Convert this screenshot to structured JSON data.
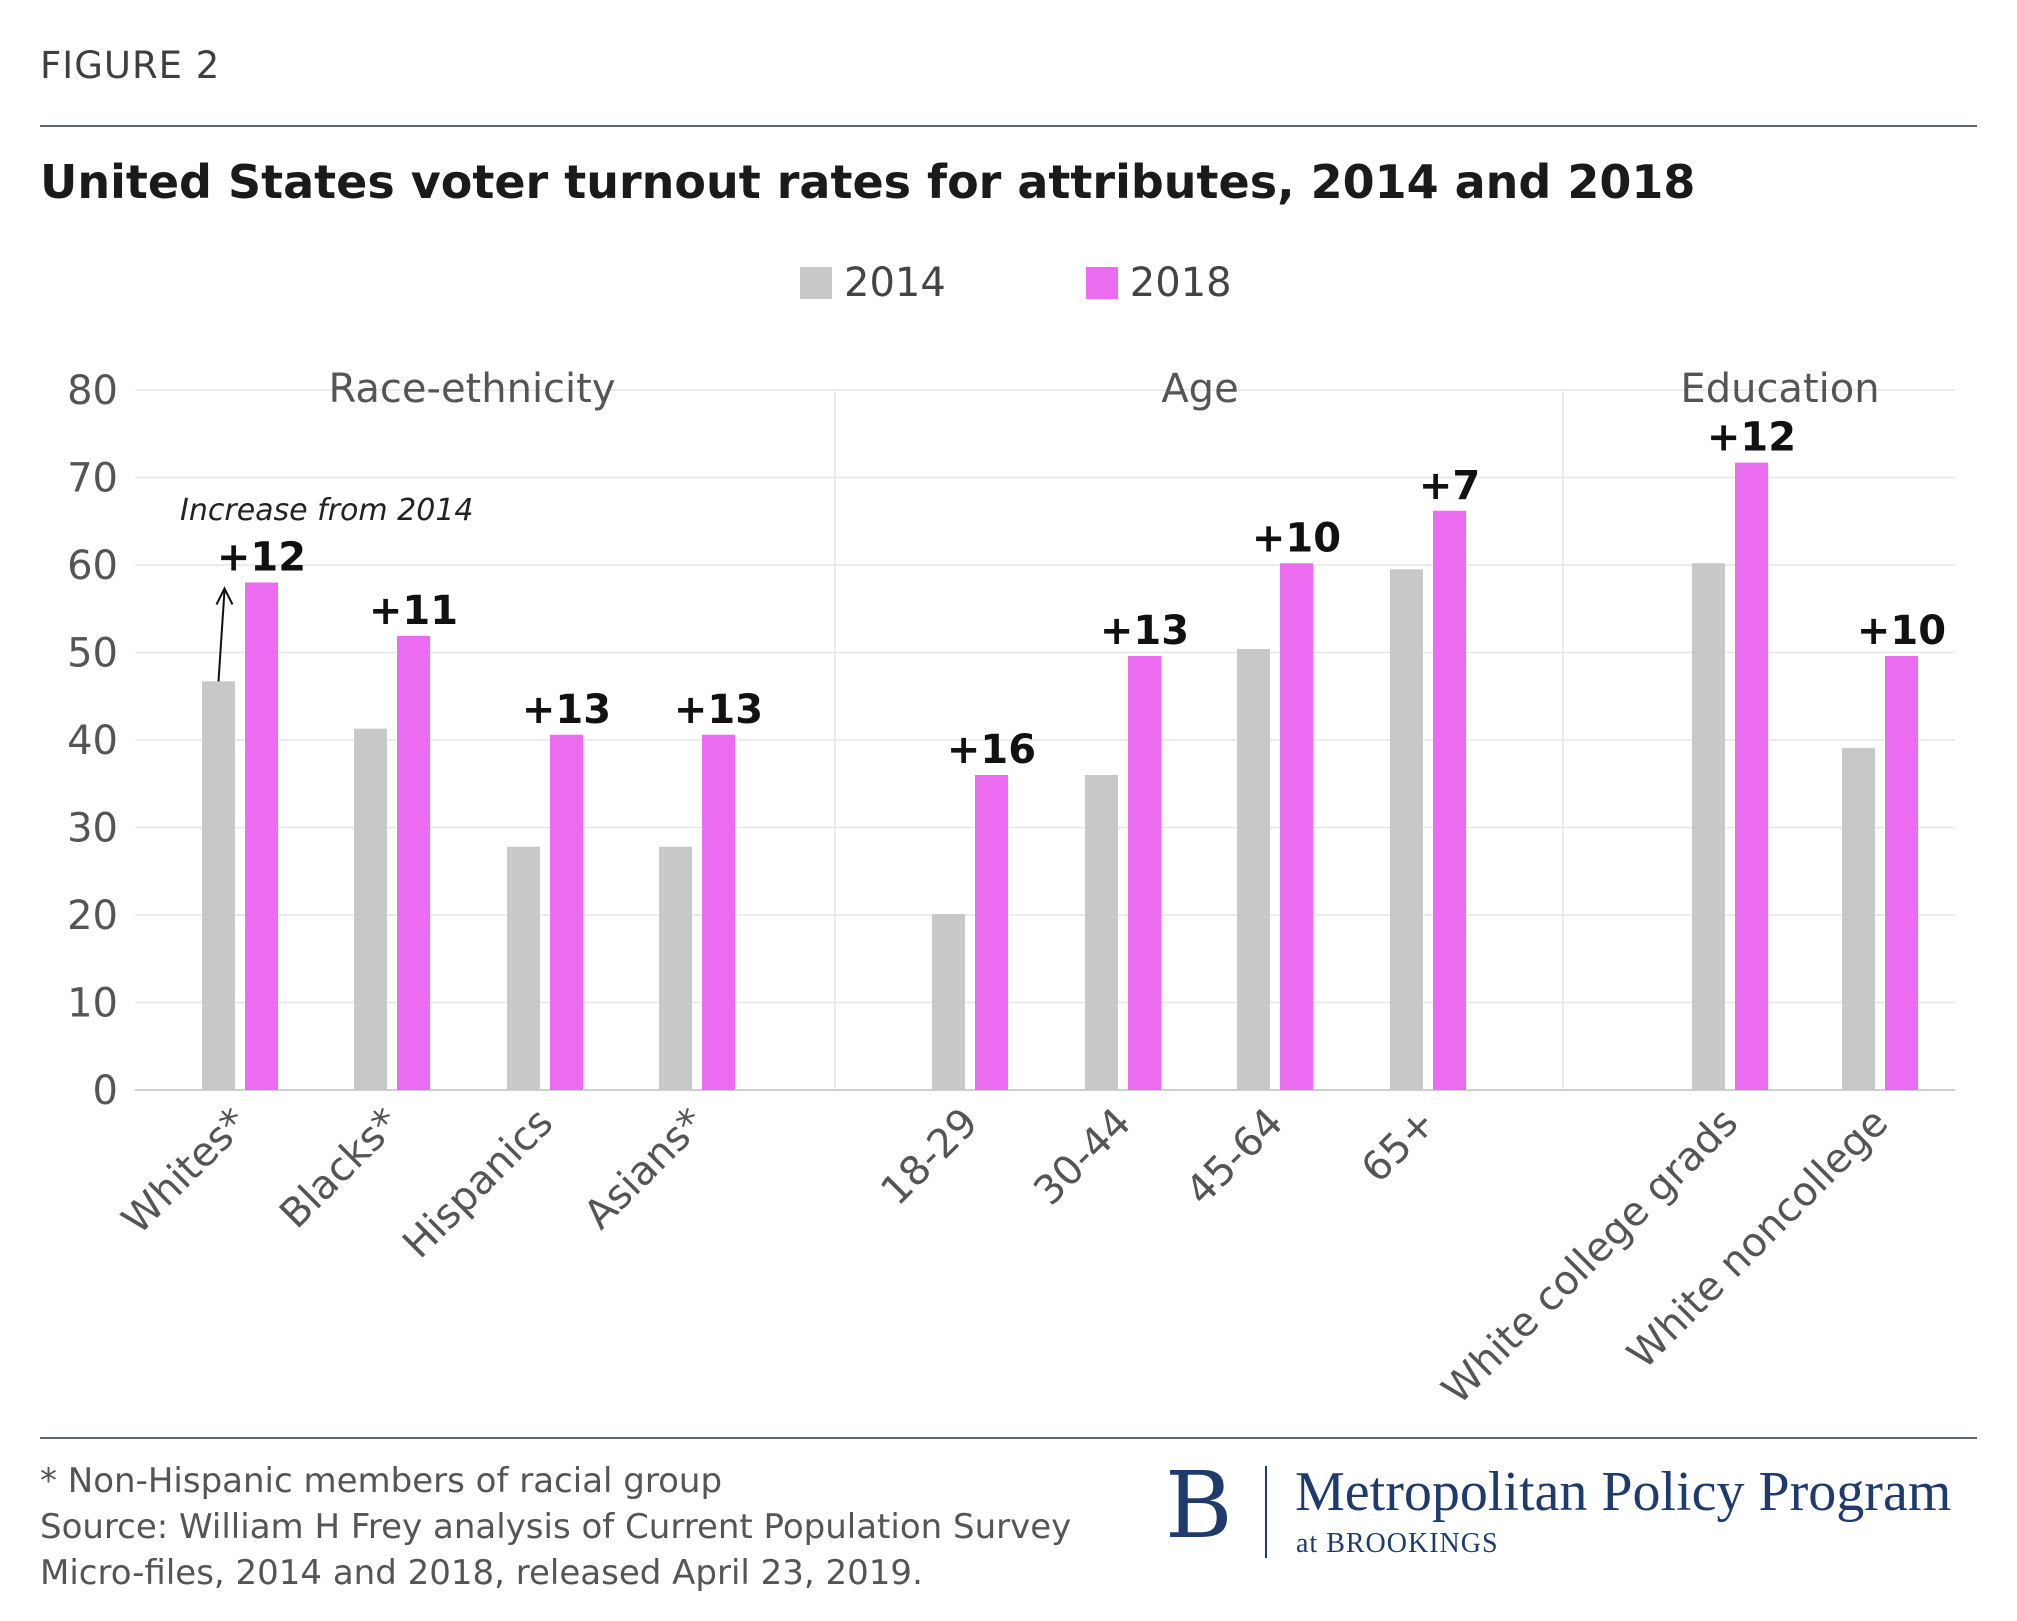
{
  "figure_label": "FIGURE 2",
  "title": "United States voter turnout rates for attributes, 2014 and 2018",
  "legend": [
    {
      "name": "2014",
      "color": "#c8c8c8"
    },
    {
      "name": "2018",
      "color": "#eb6cf0"
    }
  ],
  "annotation": "Increase from 2014",
  "footnote": {
    "note": "* Non-Hispanic members of racial group",
    "source_line1": "Source: William H Frey analysis of Current Population Survey",
    "source_line2": "Micro-files, 2014 and 2018, released April 23, 2019."
  },
  "brand": {
    "logo_letter": "B",
    "name": "Metropolitan Policy Program",
    "sub": "at BROOKINGS"
  },
  "chart_data": {
    "type": "bar",
    "title": "United States voter turnout rates for attributes, 2014 and 2018",
    "ylim": [
      0,
      80
    ],
    "yticks": [
      0,
      10,
      20,
      30,
      40,
      50,
      60,
      70,
      80
    ],
    "grid": true,
    "groups": [
      {
        "name": "Race-ethnicity",
        "categories": [
          "Whites*",
          "Blacks*",
          "Hispanics",
          "Asians*"
        ]
      },
      {
        "name": "Age",
        "categories": [
          "18-29",
          "30-44",
          "45-64",
          "65+"
        ]
      },
      {
        "name": "Education",
        "categories": [
          "White college grads",
          "White noncollege"
        ]
      }
    ],
    "categories": [
      "Whites*",
      "Blacks*",
      "Hispanics",
      "Asians*",
      "18-29",
      "30-44",
      "45-64",
      "65+",
      "White college grads",
      "White noncollege"
    ],
    "series": [
      {
        "name": "2014",
        "color": "#c8c8c8",
        "values": [
          46.7,
          41.3,
          27.8,
          27.8,
          20.1,
          36.0,
          50.4,
          59.5,
          60.2,
          39.1
        ]
      },
      {
        "name": "2018",
        "color": "#eb6cf0",
        "values": [
          58.0,
          51.9,
          40.6,
          40.6,
          36.0,
          49.6,
          60.2,
          66.2,
          71.7,
          49.6
        ]
      }
    ],
    "data_labels": [
      "+12",
      "+11",
      "+13",
      "+13",
      "+16",
      "+13",
      "+10",
      "+7",
      "+12",
      "+10"
    ]
  }
}
